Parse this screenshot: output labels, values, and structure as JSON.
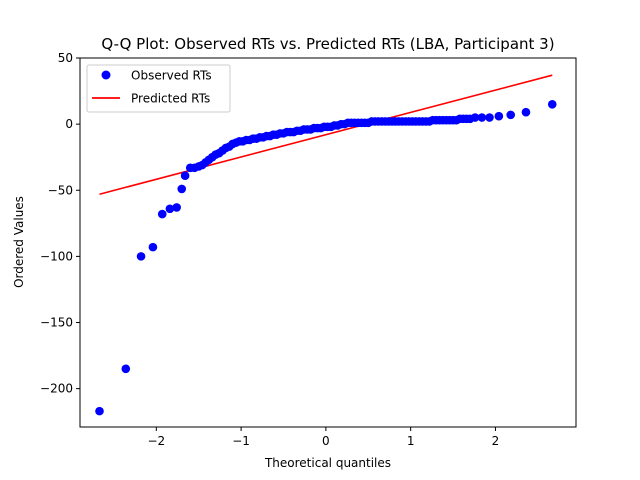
{
  "chart_data": {
    "type": "scatter",
    "title": "Q-Q Plot: Observed RTs vs. Predicted RTs (LBA, Participant 3)",
    "xlabel": "Theoretical quantiles",
    "ylabel": "Ordered Values",
    "xlim": [
      -2.9,
      2.95
    ],
    "ylim": [
      -229,
      50
    ],
    "xticks": [
      -2,
      -1,
      0,
      1,
      2
    ],
    "yticks": [
      50,
      0,
      -50,
      -100,
      -150,
      -200
    ],
    "grid": false,
    "legend_position": "upper-left",
    "colors": {
      "observed": "#0000ff",
      "predicted": "#ff0000"
    },
    "series": [
      {
        "name": "Observed RTs",
        "kind": "points",
        "points": [
          [
            -2.67,
            -217
          ],
          [
            -2.36,
            -185
          ],
          [
            -2.18,
            -100
          ],
          [
            -2.04,
            -93
          ],
          [
            -1.93,
            -68
          ],
          [
            -1.84,
            -64
          ],
          [
            -1.76,
            -63
          ],
          [
            -1.7,
            -49
          ],
          [
            -1.66,
            -39
          ],
          [
            -1.6,
            -33
          ],
          [
            -1.55,
            -33
          ],
          [
            -1.5,
            -32
          ],
          [
            -1.46,
            -31
          ],
          [
            -1.42,
            -29
          ],
          [
            -1.38,
            -27
          ],
          [
            -1.34,
            -25
          ],
          [
            -1.3,
            -23
          ],
          [
            -1.26,
            -22
          ],
          [
            -1.22,
            -20
          ],
          [
            -1.18,
            -18
          ],
          [
            -1.14,
            -17
          ],
          [
            -1.1,
            -15
          ],
          [
            -1.06,
            -14
          ],
          [
            -1.02,
            -13
          ],
          [
            -0.98,
            -13
          ],
          [
            -0.94,
            -12
          ],
          [
            -0.9,
            -12
          ],
          [
            -0.86,
            -11
          ],
          [
            -0.82,
            -11
          ],
          [
            -0.78,
            -10
          ],
          [
            -0.74,
            -10
          ],
          [
            -0.7,
            -9
          ],
          [
            -0.66,
            -9
          ],
          [
            -0.62,
            -8
          ],
          [
            -0.58,
            -8
          ],
          [
            -0.54,
            -7
          ],
          [
            -0.5,
            -7
          ],
          [
            -0.46,
            -6
          ],
          [
            -0.42,
            -6
          ],
          [
            -0.38,
            -6
          ],
          [
            -0.34,
            -5
          ],
          [
            -0.3,
            -5
          ],
          [
            -0.26,
            -4
          ],
          [
            -0.22,
            -4
          ],
          [
            -0.18,
            -4
          ],
          [
            -0.14,
            -3
          ],
          [
            -0.1,
            -3
          ],
          [
            -0.06,
            -3
          ],
          [
            -0.02,
            -2
          ],
          [
            0.02,
            -2
          ],
          [
            0.06,
            -2
          ],
          [
            0.1,
            -1
          ],
          [
            0.14,
            -1
          ],
          [
            0.18,
            0
          ],
          [
            0.22,
            0
          ],
          [
            0.26,
            1
          ],
          [
            0.3,
            1
          ],
          [
            0.34,
            1
          ],
          [
            0.38,
            1
          ],
          [
            0.42,
            1
          ],
          [
            0.46,
            1
          ],
          [
            0.5,
            1
          ],
          [
            0.54,
            2
          ],
          [
            0.58,
            2
          ],
          [
            0.62,
            2
          ],
          [
            0.66,
            2
          ],
          [
            0.7,
            2
          ],
          [
            0.74,
            2
          ],
          [
            0.78,
            2
          ],
          [
            0.82,
            2
          ],
          [
            0.86,
            2
          ],
          [
            0.9,
            2
          ],
          [
            0.94,
            2
          ],
          [
            0.98,
            2
          ],
          [
            1.02,
            2
          ],
          [
            1.06,
            2
          ],
          [
            1.1,
            2
          ],
          [
            1.14,
            2
          ],
          [
            1.18,
            2
          ],
          [
            1.22,
            2
          ],
          [
            1.26,
            3
          ],
          [
            1.3,
            3
          ],
          [
            1.34,
            3
          ],
          [
            1.38,
            3
          ],
          [
            1.42,
            3
          ],
          [
            1.46,
            3
          ],
          [
            1.5,
            3
          ],
          [
            1.54,
            3
          ],
          [
            1.58,
            4
          ],
          [
            1.62,
            4
          ],
          [
            1.66,
            4
          ],
          [
            1.7,
            4
          ],
          [
            1.76,
            5
          ],
          [
            1.84,
            5
          ],
          [
            1.93,
            5
          ],
          [
            2.04,
            6
          ],
          [
            2.18,
            7
          ],
          [
            2.36,
            9
          ],
          [
            2.67,
            15
          ]
        ]
      },
      {
        "name": "Predicted RTs",
        "kind": "line",
        "points": [
          [
            -2.67,
            -53
          ],
          [
            2.67,
            37
          ]
        ]
      }
    ]
  }
}
